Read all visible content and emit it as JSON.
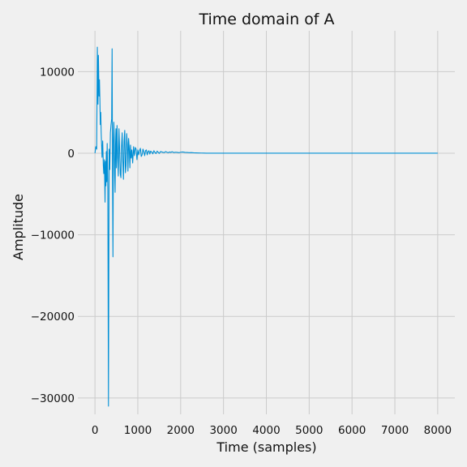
{
  "chart_data": {
    "type": "line",
    "title": "Time domain of A",
    "xlabel": "Time (samples)",
    "ylabel": "Amplitude",
    "xlim": [
      -400,
      8400
    ],
    "ylim": [
      -32000,
      15000
    ],
    "xticks": [
      0,
      1000,
      2000,
      3000,
      4000,
      5000,
      6000,
      7000,
      8000
    ],
    "xtick_labels": [
      "0",
      "1000",
      "2000",
      "3000",
      "4000",
      "5000",
      "6000",
      "7000",
      "8000"
    ],
    "yticks": [
      -30000,
      -20000,
      -10000,
      0,
      10000
    ],
    "ytick_labels": [
      "−30000",
      "−20000",
      "−10000",
      "0",
      "10000"
    ],
    "grid": true,
    "style": "fivethirtyeight",
    "color": "#008fd5",
    "series": [
      {
        "x": [
          0,
          20,
          40,
          55,
          70,
          80,
          95,
          105,
          115,
          125,
          135,
          145,
          155,
          165,
          180,
          195,
          205,
          220,
          235,
          245,
          255,
          265,
          275,
          285,
          300,
          315,
          330,
          345,
          360,
          375,
          390,
          400,
          410,
          420,
          430,
          440,
          450,
          460,
          470,
          480,
          490,
          500,
          515,
          530,
          545,
          560,
          575,
          590,
          605,
          620,
          635,
          650,
          665,
          680,
          695,
          710,
          725,
          740,
          755,
          770,
          785,
          800,
          815,
          830,
          845,
          860,
          880,
          900,
          920,
          940,
          960,
          980,
          1000,
          1020,
          1040,
          1060,
          1080,
          1100,
          1120,
          1140,
          1160,
          1180,
          1200,
          1220,
          1240,
          1260,
          1280,
          1300,
          1325,
          1350,
          1375,
          1400,
          1425,
          1450,
          1475,
          1500,
          1530,
          1560,
          1590,
          1620,
          1650,
          1680,
          1710,
          1740,
          1770,
          1800,
          1840,
          1880,
          1920,
          1960,
          2000,
          2050,
          2100,
          2150,
          2200,
          2250,
          2300,
          2360,
          2420,
          2480,
          2540,
          2600,
          2700,
          2800,
          2900,
          3000,
          3200,
          3400,
          3600,
          3800,
          4000,
          4500,
          5000,
          6000,
          7000,
          8000
        ],
        "y": [
          0,
          800,
          500,
          13000,
          6000,
          12000,
          7000,
          9000,
          6500,
          3500,
          5000,
          2500,
          1000,
          -500,
          1500,
          -1500,
          -2500,
          -800,
          -6000,
          -1000,
          -4000,
          200,
          -3500,
          1200,
          -4500,
          -31000,
          500,
          -2000,
          2500,
          3500,
          4200,
          12800,
          -3000,
          -12700,
          1500,
          3800,
          2000,
          -2500,
          -4800,
          1000,
          3000,
          -1800,
          3400,
          -500,
          -2800,
          3000,
          500,
          -2500,
          -3000,
          800,
          2500,
          -1000,
          -3200,
          1500,
          2800,
          -2400,
          -1500,
          2400,
          1200,
          -2200,
          1800,
          600,
          -1800,
          1000,
          -600,
          400,
          -1200,
          800,
          -300,
          700,
          500,
          -800,
          400,
          -200,
          300,
          600,
          -400,
          -200,
          500,
          200,
          -300,
          300,
          400,
          -200,
          200,
          300,
          -100,
          250,
          150,
          -80,
          300,
          100,
          -50,
          250,
          120,
          -30,
          200,
          150,
          100,
          80,
          200,
          120,
          60,
          150,
          100,
          180,
          80,
          120,
          100,
          60,
          120,
          150,
          100,
          90,
          60,
          80,
          50,
          40,
          30,
          20,
          10,
          5,
          0,
          0,
          0,
          0,
          0,
          0,
          0,
          0,
          0,
          0,
          0,
          0,
          0,
          0
        ]
      }
    ]
  }
}
